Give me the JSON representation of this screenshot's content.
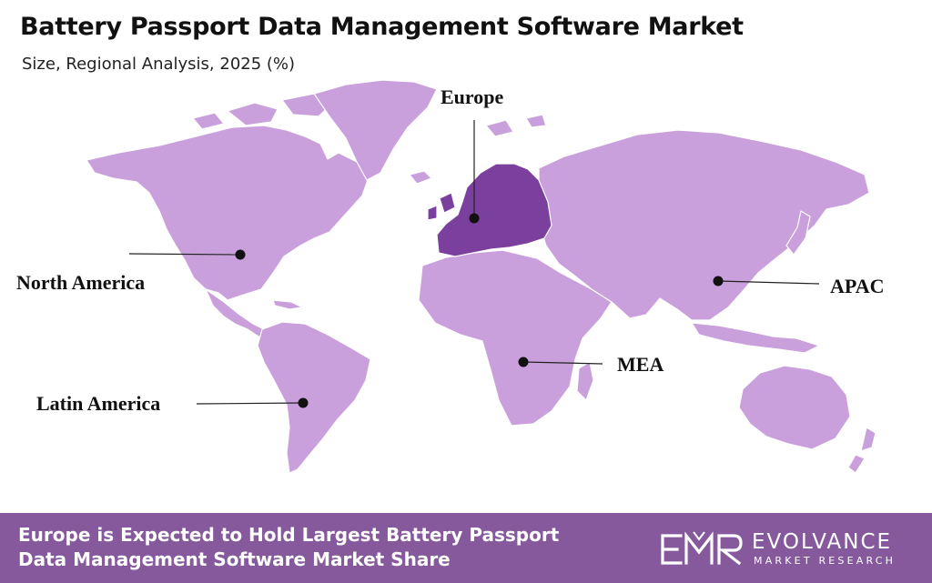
{
  "header": {
    "title": "Battery Passport Data Management Software Market",
    "subtitle": "Size, Regional Analysis, 2025 (%)"
  },
  "map": {
    "land_color": "#c9a0dc",
    "highlight_color": "#7b3f9e",
    "highlighted_region": "Europe",
    "regions": [
      {
        "id": "europe",
        "label": "Europe"
      },
      {
        "id": "north-america",
        "label": "North America"
      },
      {
        "id": "apac",
        "label": "APAC"
      },
      {
        "id": "mea",
        "label": "MEA"
      },
      {
        "id": "latin-america",
        "label": "Latin America"
      }
    ]
  },
  "footer": {
    "background": "#86599c",
    "line1": "Europe is Expected to Hold Largest Battery Passport",
    "line2": "Data Management Software Market Share",
    "logo": {
      "icon": "emr-logo-icon",
      "name": "EVOLVANCE",
      "tagline": "MARKET RESEARCH"
    }
  }
}
